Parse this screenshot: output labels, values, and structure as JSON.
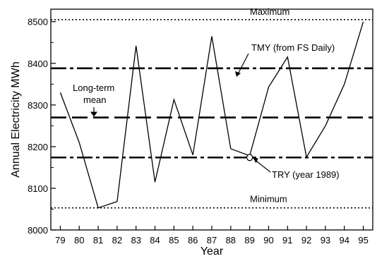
{
  "chart_data": {
    "type": "line",
    "xlabel": "Year",
    "ylabel": "Annual Electricity MWh",
    "xlim": [
      78.5,
      95.5
    ],
    "ylim": [
      8000,
      8530
    ],
    "x_ticks": [
      "79",
      "80",
      "81",
      "82",
      "83",
      "84",
      "85",
      "86",
      "87",
      "88",
      "89",
      "90",
      "91",
      "92",
      "93",
      "94",
      "95"
    ],
    "y_ticks": [
      8000,
      8100,
      8200,
      8300,
      8400,
      8500
    ],
    "grid": false,
    "series": [
      {
        "x": [
          79,
          80,
          81,
          82,
          83,
          84,
          85,
          86,
          87,
          88,
          89,
          90,
          91,
          92,
          93,
          94,
          95
        ],
        "values": [
          8330,
          8210,
          8053,
          8068,
          8442,
          8115,
          8313,
          8180,
          8465,
          8195,
          8178,
          8343,
          8415,
          8175,
          8250,
          8350,
          8500
        ]
      }
    ],
    "reference_lines": [
      {
        "label": "Maximum",
        "value": 8505,
        "style": "dotted"
      },
      {
        "label": "TMY (from FS Daily)",
        "value": 8388,
        "style": "dash-dot"
      },
      {
        "label": "Long-term mean",
        "label_lines": [
          "Long-term",
          "mean"
        ],
        "value": 8270,
        "style": "dashed"
      },
      {
        "label": "TRY (year 1989)",
        "value": 8174,
        "style": "dash-dot"
      },
      {
        "label": "Minimum",
        "value": 8053,
        "style": "dotted"
      }
    ],
    "highlight": {
      "x": 89,
      "y": 8174
    }
  }
}
